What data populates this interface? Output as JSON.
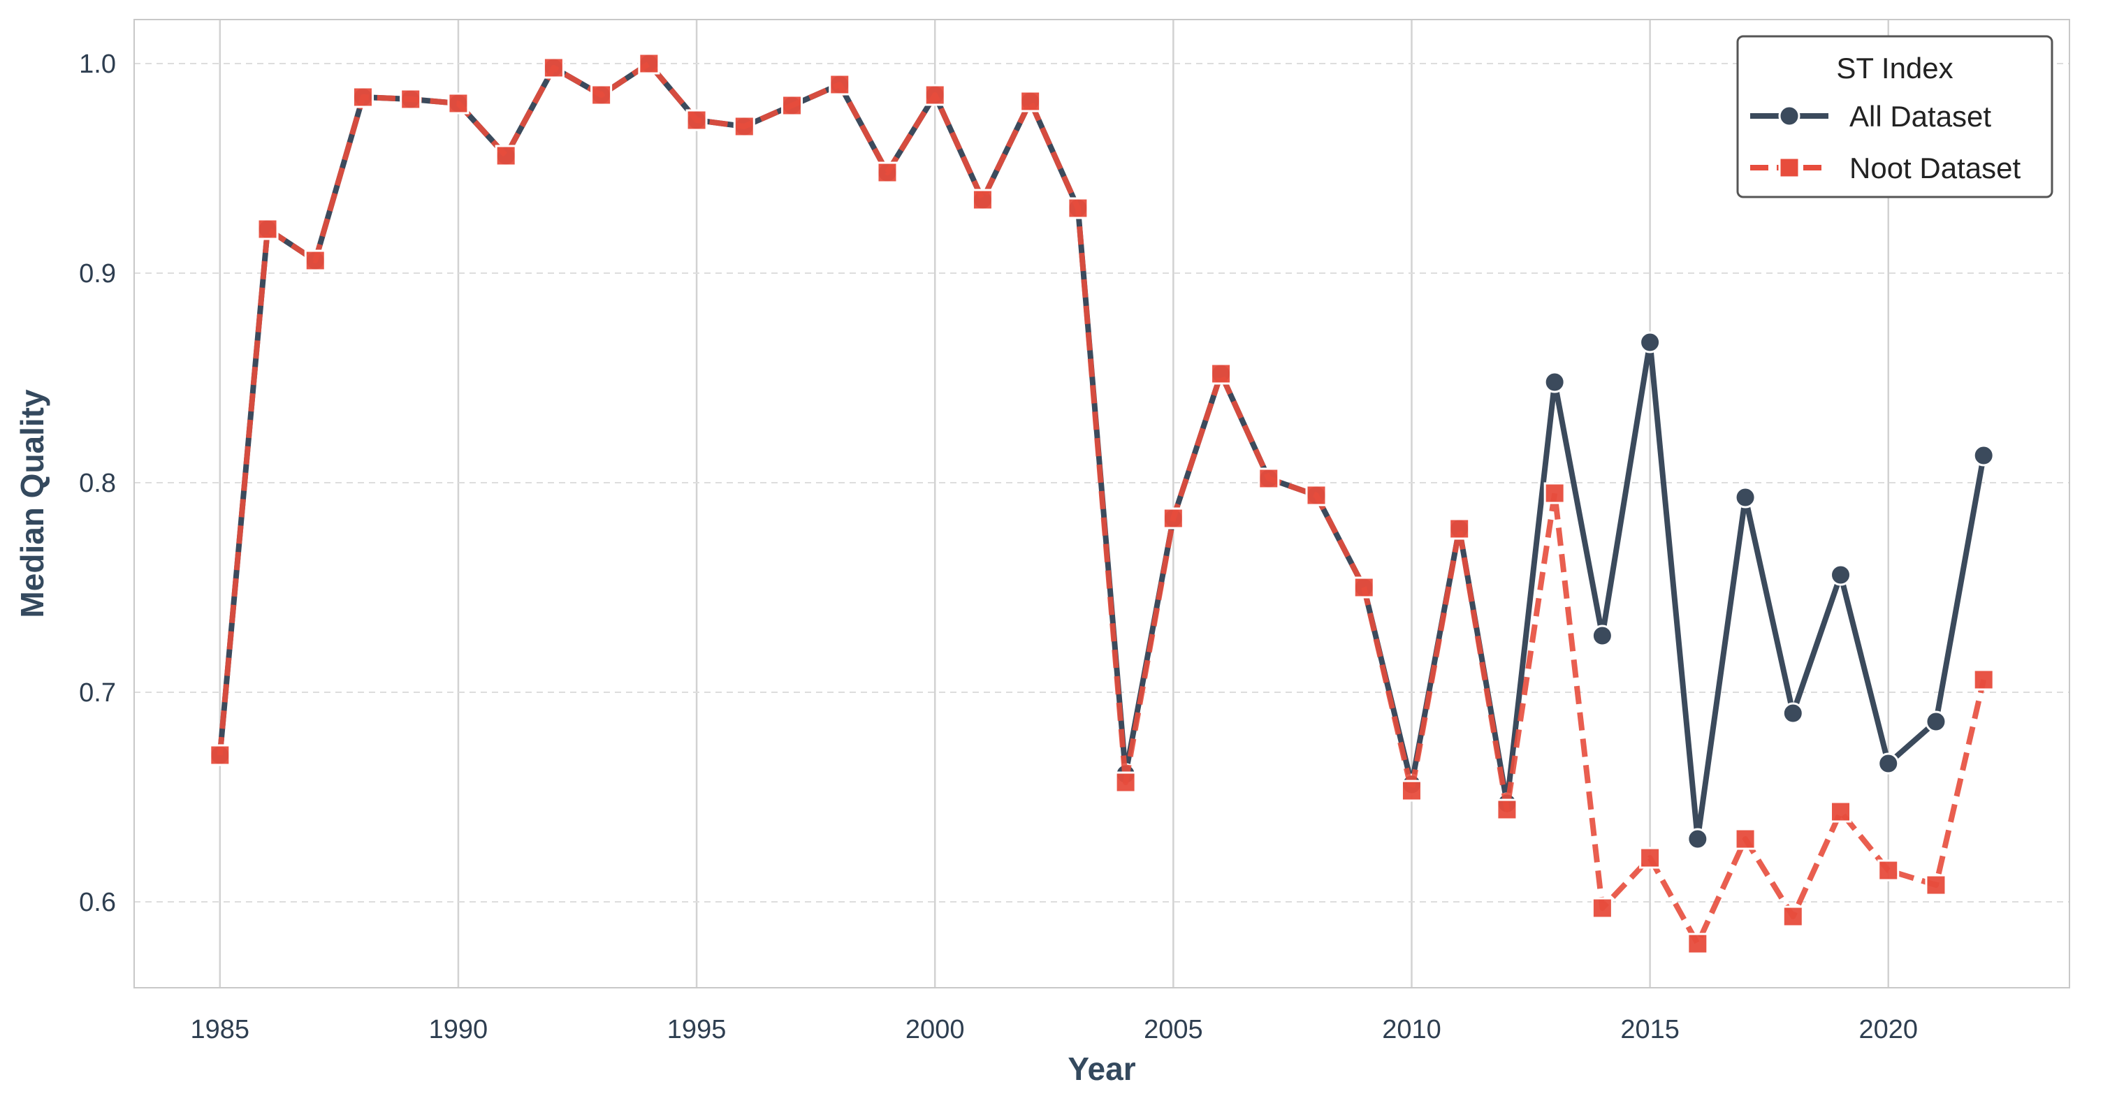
{
  "chart_data": {
    "type": "line",
    "xlabel": "Year",
    "ylabel": "Median Quality",
    "xlim": [
      1983.2,
      2023.8
    ],
    "ylim": [
      0.559,
      1.021
    ],
    "x_ticks": [
      1985,
      1990,
      1995,
      2000,
      2005,
      2010,
      2015,
      2020
    ],
    "y_ticks": [
      0.6,
      0.7,
      0.8,
      0.9,
      1.0
    ],
    "y_tick_labels": [
      "0.6",
      "0.7",
      "0.8",
      "0.9",
      "1.0"
    ],
    "grid": "vertical solid, horizontal dashed",
    "legend": {
      "title": "ST Index",
      "placement": "top-right"
    },
    "series": [
      {
        "name": "All Dataset",
        "color": "#3b4a5c",
        "line_style": "solid",
        "marker": "circle",
        "x": [
          1985,
          1986,
          1987,
          1988,
          1989,
          1990,
          1991,
          1992,
          1993,
          1994,
          1995,
          1996,
          1997,
          1998,
          1999,
          2000,
          2001,
          2002,
          2003,
          2004,
          2005,
          2006,
          2007,
          2008,
          2009,
          2010,
          2011,
          2012,
          2013,
          2014,
          2015,
          2016,
          2017,
          2018,
          2019,
          2020,
          2021,
          2022
        ],
        "y": [
          0.67,
          0.921,
          0.906,
          0.984,
          0.983,
          0.981,
          0.956,
          0.998,
          0.985,
          1.0,
          0.973,
          0.97,
          0.98,
          0.99,
          0.948,
          0.985,
          0.935,
          0.982,
          0.931,
          0.661,
          0.783,
          0.852,
          0.802,
          0.794,
          0.75,
          0.656,
          0.778,
          0.647,
          0.848,
          0.727,
          0.867,
          0.63,
          0.793,
          0.69,
          0.756,
          0.666,
          0.686,
          0.813
        ]
      },
      {
        "name": "Noot Dataset",
        "color": "#e74c3c",
        "line_style": "dashed",
        "marker": "square",
        "x": [
          1985,
          1986,
          1987,
          1988,
          1989,
          1990,
          1991,
          1992,
          1993,
          1994,
          1995,
          1996,
          1997,
          1998,
          1999,
          2000,
          2001,
          2002,
          2003,
          2004,
          2005,
          2006,
          2007,
          2008,
          2009,
          2010,
          2011,
          2012,
          2013,
          2014,
          2015,
          2016,
          2017,
          2018,
          2019,
          2020,
          2021,
          2022
        ],
        "y": [
          0.67,
          0.921,
          0.906,
          0.984,
          0.983,
          0.981,
          0.956,
          0.998,
          0.985,
          1.0,
          0.973,
          0.97,
          0.98,
          0.99,
          0.948,
          0.985,
          0.935,
          0.982,
          0.931,
          0.657,
          0.783,
          0.852,
          0.802,
          0.794,
          0.75,
          0.653,
          0.778,
          0.644,
          0.795,
          0.597,
          0.621,
          0.58,
          0.63,
          0.593,
          0.643,
          0.615,
          0.608,
          0.706
        ]
      }
    ]
  }
}
